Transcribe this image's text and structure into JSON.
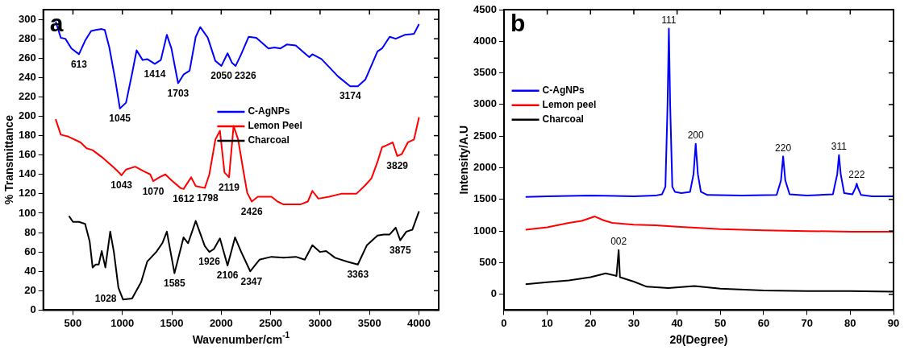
{
  "chart_data": [
    {
      "type": "line",
      "xlabel": "Wavenumber/cm$^{-1}$",
      "ylabel": "% Transmittance",
      "xlim": [
        200,
        4200
      ],
      "ylim": [
        0,
        310
      ],
      "xticks": [
        500,
        1000,
        1500,
        2000,
        2500,
        3000,
        3500,
        4000
      ],
      "yticks": [
        0,
        20,
        40,
        60,
        80,
        100,
        120,
        140,
        160,
        180,
        200,
        220,
        240,
        260,
        280,
        300
      ],
      "legend": "center",
      "grid": false,
      "series": [
        {
          "name": "C-AgNPs",
          "color": "#0000ff",
          "x": [
            325,
            377,
            423,
            485,
            561,
            623,
            684,
            730,
            791,
            822,
            868,
            929,
            975,
            1037,
            1098,
            1144,
            1205,
            1251,
            1328,
            1389,
            1450,
            1496,
            1564,
            1619,
            1680,
            1742,
            1788,
            1864,
            1941,
            2002,
            2064,
            2110,
            2146,
            2202,
            2278,
            2355,
            2478,
            2539,
            2600,
            2662,
            2754,
            2845,
            2891,
            2922,
            3014,
            3183,
            3305,
            3382,
            3459,
            3581,
            3627,
            3704,
            3765,
            3857,
            3950,
            4001
          ],
          "values": [
            298,
            281,
            280,
            270,
            264,
            278,
            288,
            289,
            290,
            289,
            271,
            237,
            208,
            214,
            244,
            268,
            258,
            259,
            254,
            258,
            284,
            270,
            234,
            243,
            247,
            282,
            292,
            281,
            257,
            252,
            265,
            255,
            252,
            264,
            282,
            281,
            270,
            271,
            270,
            274,
            273,
            265,
            261,
            264,
            259,
            241,
            231,
            231,
            238,
            267,
            270,
            282,
            280,
            284,
            285,
            295
          ]
        },
        {
          "name": "Lemon Peel",
          "color": "#ff0000",
          "x": [
            325,
            377,
            454,
            577,
            638,
            699,
            791,
            914,
            975,
            991,
            1037,
            1129,
            1221,
            1282,
            1312,
            1374,
            1435,
            1496,
            1588,
            1619,
            1696,
            1742,
            1834,
            1880,
            1941,
            1987,
            2033,
            2079,
            2125,
            2171,
            2232,
            2263,
            2309,
            2370,
            2508,
            2570,
            2631,
            2800,
            2876,
            2922,
            2983,
            3091,
            3213,
            3367,
            3459,
            3520,
            3581,
            3627,
            3673,
            3735,
            3781,
            3827,
            3888,
            3950,
            4001
          ],
          "values": [
            197,
            181,
            179,
            173,
            167,
            165,
            158,
            147,
            141,
            139,
            145,
            148,
            143,
            140,
            133,
            137,
            140,
            134,
            126,
            125,
            137,
            128,
            126,
            140,
            176,
            185,
            142,
            137,
            190,
            176,
            139,
            121,
            112,
            117,
            117,
            112,
            109,
            109,
            112,
            123,
            115,
            117,
            120,
            120,
            129,
            136,
            153,
            168,
            170,
            173,
            159,
            161,
            173,
            176,
            199
          ]
        },
        {
          "name": "Charcoal",
          "color": "#000000",
          "x": [
            460,
            500,
            561,
            623,
            669,
            699,
            730,
            761,
            791,
            828,
            877,
            914,
            960,
            1006,
            1098,
            1190,
            1251,
            1343,
            1404,
            1450,
            1527,
            1619,
            1665,
            1742,
            1834,
            1880,
            1926,
            1987,
            2064,
            2140,
            2202,
            2294,
            2386,
            2508,
            2631,
            2754,
            2845,
            2922,
            3000,
            3061,
            3152,
            3275,
            3382,
            3474,
            3581,
            3643,
            3704,
            3765,
            3811,
            3873,
            3934,
            4001
          ],
          "values": [
            97,
            91,
            91,
            89,
            71,
            44,
            47,
            47,
            61,
            44,
            81,
            60,
            23,
            11,
            12,
            29,
            50,
            60,
            69,
            81,
            38,
            75,
            69,
            92,
            66,
            60,
            63,
            74,
            46,
            75,
            60,
            40,
            52,
            55,
            54,
            55,
            52,
            67,
            60,
            61,
            54,
            50,
            47,
            67,
            77,
            78,
            78,
            85,
            72,
            81,
            83,
            102
          ]
        }
      ],
      "annotations": [
        "a",
        {
          "text": "613",
          "x": 561,
          "y": 264
        },
        {
          "text": "1045",
          "x": 975,
          "y": 208
        },
        {
          "text": "1414",
          "x": 1328,
          "y": 254
        },
        {
          "text": "1703",
          "x": 1564,
          "y": 234
        },
        {
          "text": "2050",
          "x": 2002,
          "y": 252
        },
        {
          "text": "2326",
          "x": 2146,
          "y": 252
        },
        {
          "text": "3174",
          "x": 3305,
          "y": 231
        },
        {
          "text": "3829",
          "x": 3781,
          "y": 159
        },
        {
          "text": "1043",
          "x": 991,
          "y": 139
        },
        {
          "text": "1070",
          "x": 1312,
          "y": 133
        },
        {
          "text": "1612",
          "x": 1619,
          "y": 125
        },
        {
          "text": "1798",
          "x": 1834,
          "y": 126
        },
        {
          "text": "2119",
          "x": 2079,
          "y": 137
        },
        {
          "text": "2426",
          "x": 2309,
          "y": 112
        },
        {
          "text": "1028",
          "x": 1006,
          "y": 11
        },
        {
          "text": "1585",
          "x": 1527,
          "y": 38
        },
        {
          "text": "1926",
          "x": 1880,
          "y": 60
        },
        {
          "text": "2106",
          "x": 2064,
          "y": 46
        },
        {
          "text": "2347",
          "x": 2294,
          "y": 40
        },
        {
          "text": "3363",
          "x": 3382,
          "y": 47
        },
        {
          "text": "3875",
          "x": 3811,
          "y": 72
        }
      ]
    },
    {
      "type": "line",
      "xlabel": "2θ(Degree)",
      "ylabel": "Intensity/A.U",
      "xlim": [
        0,
        90
      ],
      "ylim": [
        -250,
        4500
      ],
      "xticks": [
        0,
        10,
        20,
        30,
        40,
        50,
        60,
        70,
        80,
        90
      ],
      "yticks": [
        0,
        500,
        1000,
        1500,
        2000,
        2500,
        3000,
        3500,
        4000,
        4500
      ],
      "legend": "top left",
      "grid": false,
      "series": [
        {
          "name": "C-AgNPs",
          "color": "#0000ff",
          "x": [
            5,
            10,
            20,
            30,
            35,
            36.5,
            37.3,
            37.8,
            38.1,
            38.4,
            38.9,
            39.5,
            41,
            43,
            43.8,
            44.3,
            44.8,
            45.5,
            47,
            55,
            63,
            64,
            64.5,
            65,
            66,
            70,
            76,
            77,
            77.4,
            77.8,
            78.6,
            80.5,
            81.2,
            81.5,
            81.8,
            82.5,
            85,
            90
          ],
          "values": [
            1540,
            1550,
            1560,
            1550,
            1560,
            1580,
            1700,
            3000,
            4200,
            3000,
            1700,
            1620,
            1600,
            1620,
            1900,
            2380,
            1900,
            1620,
            1570,
            1560,
            1570,
            1800,
            2180,
            1800,
            1580,
            1560,
            1580,
            1900,
            2200,
            1900,
            1600,
            1580,
            1680,
            1750,
            1680,
            1570,
            1550,
            1550
          ]
        },
        {
          "name": "Lemon peel",
          "color": "#ff0000",
          "x": [
            5,
            10,
            15,
            18,
            21,
            23,
            25,
            30,
            35,
            40,
            45,
            50,
            60,
            70,
            80,
            90
          ],
          "values": [
            1020,
            1060,
            1130,
            1160,
            1230,
            1170,
            1130,
            1100,
            1090,
            1070,
            1050,
            1030,
            1010,
            1000,
            990,
            990
          ]
        },
        {
          "name": "Charcoal",
          "color": "#000000",
          "x": [
            5,
            10,
            15,
            20,
            23.5,
            26,
            26.5,
            26.8,
            30,
            33,
            38,
            44,
            50,
            60,
            70,
            80,
            90
          ],
          "values": [
            160,
            190,
            220,
            270,
            330,
            290,
            700,
            270,
            200,
            120,
            100,
            130,
            90,
            60,
            50,
            50,
            40
          ]
        }
      ],
      "annotations": [
        "b",
        {
          "text": "111",
          "x": 38.1,
          "y": 4200
        },
        {
          "text": "200",
          "x": 44.3,
          "y": 2380
        },
        {
          "text": "220",
          "x": 64.5,
          "y": 2180
        },
        {
          "text": "311",
          "x": 77.4,
          "y": 2200
        },
        {
          "text": "222",
          "x": 81.5,
          "y": 1750
        },
        {
          "text": "002",
          "x": 26.5,
          "y": 700
        }
      ]
    }
  ]
}
